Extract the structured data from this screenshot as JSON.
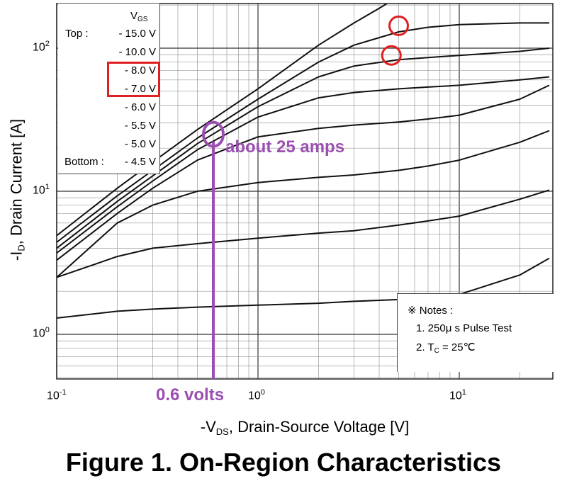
{
  "caption": "Figure 1. On-Region Characteristics",
  "x_axis_label": {
    "main": "-V",
    "sub": "DS",
    "rest": ", Drain-Source Voltage [V]"
  },
  "y_axis_label": {
    "main": "-I",
    "sub": "D",
    "rest": ", Drain Current [A]"
  },
  "x_tick_labels": [
    {
      "base": "10",
      "exp": "-1"
    },
    {
      "base": "10",
      "exp": "0"
    },
    {
      "base": "10",
      "exp": "1"
    }
  ],
  "y_tick_labels": [
    {
      "base": "10",
      "exp": "0"
    },
    {
      "base": "10",
      "exp": "1"
    },
    {
      "base": "10",
      "exp": "2"
    }
  ],
  "legend": {
    "title_main": "V",
    "title_sub": "GS",
    "top_prefix": "Top :",
    "bottom_prefix": "Bottom :",
    "entries": [
      "- 15.0 V",
      "- 10.0 V",
      "- 8.0 V",
      "- 7.0 V",
      "- 6.0 V",
      "- 5.5 V",
      "- 5.0 V",
      "- 4.5 V"
    ]
  },
  "notes": {
    "title": "※ Notes :",
    "line1": "1. 250μ s Pulse Test",
    "line2_main": "2. T",
    "line2_sub": "C",
    "line2_rest": " = 25℃"
  },
  "annotations": {
    "current": "about 25 amps",
    "voltage": "0.6 volts"
  },
  "colors": {
    "annotation": "#9b4fb1",
    "highlight": "#e02020",
    "curve": "#111111",
    "grid": "#9a9a9a"
  },
  "chart_data": {
    "type": "line",
    "title": "Figure 1. On-Region Characteristics",
    "xlabel": "-VDS, Drain-Source Voltage [V]",
    "ylabel": "-ID, Drain Current [A]",
    "x_scale": "log",
    "y_scale": "log",
    "xlim": [
      0.1,
      28
    ],
    "ylim": [
      0.3,
      300
    ],
    "grid": true,
    "legend_position": "top-left",
    "series": [
      {
        "name": "- 15.0 V",
        "x": [
          0.1,
          0.2,
          0.3,
          0.5,
          1,
          2,
          3,
          4,
          5
        ],
        "y": [
          4.9,
          10.5,
          16,
          27,
          52,
          105,
          150,
          190,
          230
        ]
      },
      {
        "name": "- 10.0 V",
        "x": [
          0.1,
          0.2,
          0.3,
          0.5,
          1,
          2,
          3,
          5,
          7,
          10,
          20,
          28
        ],
        "y": [
          4.4,
          9.3,
          14,
          23.5,
          44,
          80,
          105,
          130,
          140,
          146,
          150,
          150
        ]
      },
      {
        "name": "- 8.0 V",
        "x": [
          0.1,
          0.2,
          0.3,
          0.5,
          1,
          2,
          3,
          5,
          7,
          10,
          20,
          28
        ],
        "y": [
          4.0,
          8.5,
          12.8,
          21.5,
          39,
          63,
          75,
          83,
          86,
          89,
          95,
          100
        ]
      },
      {
        "name": "- 7.0 V",
        "x": [
          0.1,
          0.2,
          0.3,
          0.5,
          1,
          2,
          3,
          5,
          7,
          10,
          20,
          28
        ],
        "y": [
          3.7,
          7.8,
          11.8,
          19.5,
          33,
          45,
          49,
          52,
          53.5,
          55,
          60,
          63
        ]
      },
      {
        "name": "- 6.0 V",
        "x": [
          0.1,
          0.2,
          0.3,
          0.5,
          1,
          2,
          3,
          5,
          7,
          10,
          20,
          28
        ],
        "y": [
          3.3,
          7.0,
          10.5,
          16.5,
          24,
          27.5,
          29,
          30.5,
          32,
          34,
          44,
          55
        ]
      },
      {
        "name": "- 5.5 V",
        "x": [
          0.1,
          0.2,
          0.3,
          0.5,
          1,
          2,
          3,
          5,
          7,
          10,
          20,
          28
        ],
        "y": [
          2.5,
          6.0,
          8.0,
          10.0,
          11.5,
          12.5,
          13.0,
          14.0,
          15.0,
          16.5,
          22,
          26.5
        ]
      },
      {
        "name": "- 5.0 V",
        "x": [
          0.1,
          0.2,
          0.3,
          0.5,
          1,
          2,
          3,
          5,
          7,
          10,
          20,
          28
        ],
        "y": [
          2.5,
          3.5,
          4.0,
          4.3,
          4.7,
          5.1,
          5.3,
          5.8,
          6.2,
          6.7,
          8.8,
          10.2
        ]
      },
      {
        "name": "- 4.5 V",
        "x": [
          0.1,
          0.2,
          0.3,
          0.5,
          1,
          2,
          3,
          5,
          7,
          10,
          20,
          28
        ],
        "y": [
          1.3,
          1.45,
          1.5,
          1.55,
          1.6,
          1.65,
          1.7,
          1.75,
          1.8,
          1.9,
          2.6,
          3.4
        ]
      }
    ],
    "highlighted_entries": [
      "- 8.0 V",
      "- 7.0 V"
    ],
    "marker_points": [
      {
        "name": "about 25 amps",
        "x": 0.6,
        "y": 25
      }
    ]
  }
}
